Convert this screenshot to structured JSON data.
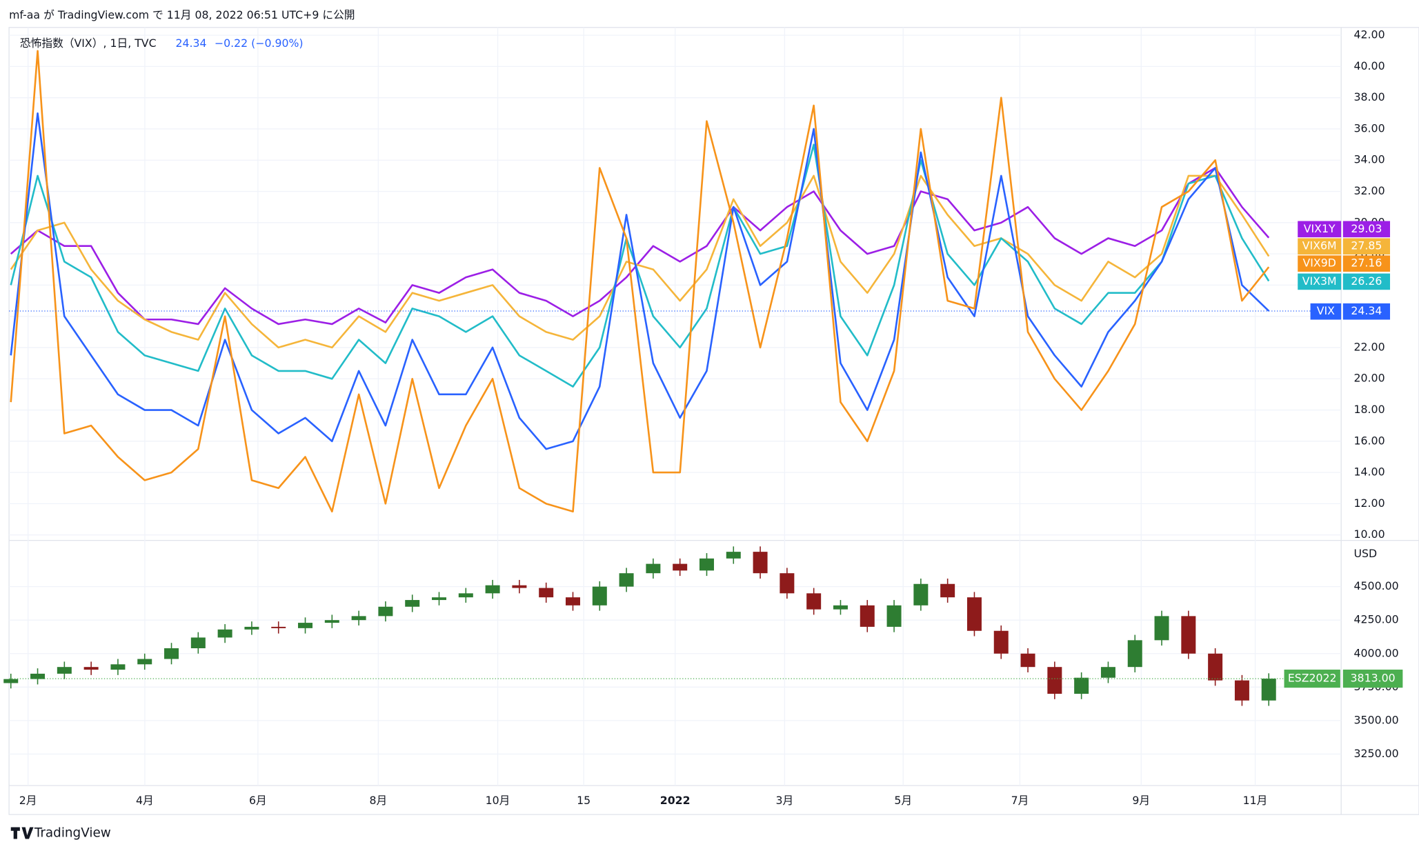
{
  "header": "mf-aa が TradingView.com で 11月 08, 2022 06:51 UTC+9 に公開",
  "legend": {
    "symbol": "恐怖指数（VIX）, 1日, TVC",
    "change": "−0.22 (−0.90%)"
  },
  "footer": "TradingView",
  "chart_data": [
    {
      "type": "line",
      "ylim": [
        9.65,
        42.5
      ],
      "yticks": [
        {
          "value": 10,
          "label": "10.00"
        },
        {
          "value": 12,
          "label": "12.00"
        },
        {
          "value": 14,
          "label": "14.00"
        },
        {
          "value": 16,
          "label": "16.00"
        },
        {
          "value": 18,
          "label": "18.00"
        },
        {
          "value": 20,
          "label": "20.00"
        },
        {
          "value": 22,
          "label": "22.00"
        },
        {
          "value": 24,
          "label": "24.00"
        },
        {
          "value": 26,
          "label": "26.00"
        },
        {
          "value": 28,
          "label": "28.00"
        },
        {
          "value": 30,
          "label": "30.00"
        },
        {
          "value": 32,
          "label": "32.00"
        },
        {
          "value": 34,
          "label": "34.00"
        },
        {
          "value": 36,
          "label": "36.00"
        },
        {
          "value": 38,
          "label": "38.00"
        },
        {
          "value": 40,
          "label": "40.00"
        },
        {
          "value": 42,
          "label": "42.00"
        }
      ],
      "grid": true,
      "series": [
        {
          "name": "VIX1Y",
          "color": "#9c1fe6",
          "values": [
            28.0,
            29.5,
            28.5,
            28.5,
            25.5,
            23.8,
            23.8,
            23.5,
            25.8,
            24.5,
            23.5,
            23.8,
            23.5,
            24.5,
            23.6,
            26.0,
            25.5,
            26.5,
            27.0,
            25.5,
            25.0,
            24.0,
            25.0,
            26.5,
            28.5,
            27.5,
            28.5,
            31.0,
            29.5,
            31.0,
            32.0,
            29.5,
            28.0,
            28.5,
            32.0,
            31.5,
            29.5,
            30.0,
            31.0,
            29.0,
            28.0,
            29.0,
            28.5,
            29.5,
            32.5,
            33.5,
            31.0,
            29.03
          ]
        },
        {
          "name": "VIX6M",
          "color": "#f5b53a",
          "values": [
            27.0,
            29.5,
            30.0,
            27.0,
            25.0,
            23.8,
            23.0,
            22.5,
            25.5,
            23.5,
            22.0,
            22.5,
            22.0,
            24.0,
            23.0,
            25.5,
            25.0,
            25.5,
            26.0,
            24.0,
            23.0,
            22.5,
            24.0,
            27.5,
            27.0,
            25.0,
            27.0,
            31.5,
            28.5,
            30.0,
            33.0,
            27.5,
            25.5,
            28.0,
            33.0,
            30.5,
            28.5,
            29.0,
            28.0,
            26.0,
            25.0,
            27.5,
            26.5,
            28.0,
            33.0,
            33.0,
            30.5,
            27.85
          ]
        },
        {
          "name": "VIX9D",
          "color": "#f7931a",
          "values": [
            18.5,
            41.0,
            16.5,
            17.0,
            15.0,
            13.5,
            14.0,
            15.5,
            24.0,
            13.5,
            13.0,
            15.0,
            11.5,
            19.0,
            12.0,
            20.0,
            13.0,
            17.0,
            20.0,
            13.0,
            12.0,
            11.5,
            33.5,
            29.0,
            14.0,
            14.0,
            36.5,
            30.0,
            22.0,
            29.0,
            37.5,
            18.5,
            16.0,
            20.5,
            36.0,
            25.0,
            24.5,
            38.0,
            23.0,
            20.0,
            18.0,
            20.5,
            23.5,
            31.0,
            32.0,
            34.0,
            25.0,
            27.16
          ]
        },
        {
          "name": "VIX3M",
          "color": "#22bcc8",
          "values": [
            26.0,
            33.0,
            27.5,
            26.5,
            23.0,
            21.5,
            21.0,
            20.5,
            24.5,
            21.5,
            20.5,
            20.5,
            20.0,
            22.5,
            21.0,
            24.5,
            24.0,
            23.0,
            24.0,
            21.5,
            20.5,
            19.5,
            22.0,
            29.0,
            24.0,
            22.0,
            24.5,
            31.0,
            28.0,
            28.5,
            35.0,
            24.0,
            21.5,
            26.0,
            34.0,
            28.0,
            26.0,
            29.0,
            27.5,
            24.5,
            23.5,
            25.5,
            25.5,
            27.5,
            32.5,
            33.0,
            29.0,
            26.26
          ]
        },
        {
          "name": "VIX",
          "color": "#2962ff",
          "values": [
            21.5,
            37.0,
            24.0,
            21.5,
            19.0,
            18.0,
            18.0,
            17.0,
            22.5,
            18.0,
            16.5,
            17.5,
            16.0,
            20.5,
            17.0,
            22.5,
            19.0,
            19.0,
            22.0,
            17.5,
            15.5,
            16.0,
            19.5,
            30.5,
            21.0,
            17.5,
            20.5,
            31.0,
            26.0,
            27.5,
            36.0,
            21.0,
            18.0,
            22.5,
            34.5,
            26.5,
            24.0,
            33.0,
            24.0,
            21.5,
            19.5,
            23.0,
            25.0,
            27.5,
            31.5,
            33.5,
            26.0,
            24.34
          ]
        }
      ]
    },
    {
      "type": "candlestick",
      "name": "ESZ2022",
      "color": "#4caf50",
      "up_color": "#2e7d32",
      "down_color": "#8e1b1b",
      "y_unit": "USD",
      "ylim": [
        3015,
        4845
      ],
      "yticks": [
        {
          "value": 3250,
          "label": "3250.00"
        },
        {
          "value": 3500,
          "label": "3500.00"
        },
        {
          "value": 3750,
          "label": "3750.00"
        },
        {
          "value": 4000,
          "label": "4000.00"
        },
        {
          "value": 4250,
          "label": "4250.00"
        },
        {
          "value": 4500,
          "label": "4500.00"
        }
      ],
      "grid": true,
      "open": [
        3780,
        3810,
        3850,
        3900,
        3880,
        3920,
        3960,
        4040,
        4120,
        4180,
        4200,
        4190,
        4230,
        4250,
        4280,
        4350,
        4400,
        4420,
        4450,
        4510,
        4490,
        4420,
        4360,
        4500,
        4600,
        4670,
        4620,
        4710,
        4760,
        4600,
        4450,
        4330,
        4360,
        4200,
        4360,
        4520,
        4420,
        4170,
        4000,
        3900,
        3700,
        3820,
        3900,
        4100,
        4280,
        4000,
        3800,
        3650
      ],
      "high": [
        3850,
        3890,
        3940,
        3940,
        3960,
        4000,
        4080,
        4160,
        4220,
        4240,
        4240,
        4270,
        4290,
        4320,
        4390,
        4440,
        4460,
        4490,
        4550,
        4550,
        4530,
        4460,
        4540,
        4640,
        4710,
        4710,
        4750,
        4800,
        4800,
        4640,
        4490,
        4400,
        4400,
        4400,
        4560,
        4560,
        4460,
        4210,
        4040,
        3940,
        3860,
        3940,
        4140,
        4320,
        4320,
        4040,
        3840,
        3853
      ],
      "low": [
        3740,
        3770,
        3810,
        3840,
        3840,
        3880,
        3920,
        4000,
        4080,
        4140,
        4150,
        4150,
        4190,
        4210,
        4240,
        4310,
        4360,
        4380,
        4410,
        4450,
        4380,
        4320,
        4320,
        4460,
        4560,
        4580,
        4580,
        4670,
        4560,
        4410,
        4290,
        4290,
        4160,
        4160,
        4320,
        4380,
        4130,
        3960,
        3860,
        3660,
        3660,
        3780,
        3860,
        4060,
        3960,
        3760,
        3610,
        3610
      ],
      "close": [
        3810,
        3850,
        3900,
        3880,
        3920,
        3960,
        4040,
        4120,
        4180,
        4200,
        4190,
        4230,
        4250,
        4280,
        4350,
        4400,
        4420,
        4450,
        4510,
        4490,
        4420,
        4360,
        4500,
        4600,
        4670,
        4620,
        4710,
        4760,
        4600,
        4450,
        4330,
        4360,
        4200,
        4360,
        4520,
        4420,
        4170,
        4000,
        3900,
        3700,
        3820,
        3900,
        4100,
        4280,
        4000,
        3800,
        3650,
        3813
      ],
      "last_close_label": "3813.00",
      "xticks": [
        "2月",
        "4月",
        "6月",
        "8月",
        "10月",
        "15",
        "2022",
        "3月",
        "5月",
        "7月",
        "9月",
        "11月"
      ]
    }
  ]
}
